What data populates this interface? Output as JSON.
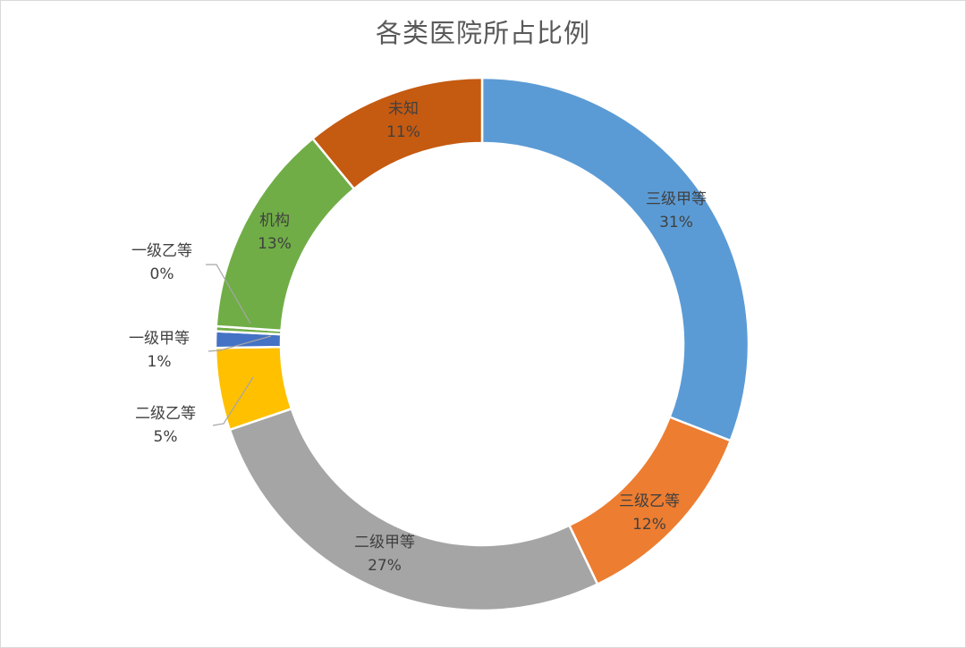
{
  "chart_data": {
    "type": "pie",
    "variant": "donut",
    "title": "各类医院所占比例",
    "start_angle_deg": 0,
    "direction": "clockwise",
    "slices": [
      {
        "name": "三级甲等",
        "value": 31,
        "label": "31%",
        "color": "#5b9bd5"
      },
      {
        "name": "三级乙等",
        "value": 12,
        "label": "12%",
        "color": "#ed7d31"
      },
      {
        "name": "二级甲等",
        "value": 27,
        "label": "27%",
        "color": "#a5a5a5"
      },
      {
        "name": "二级乙等",
        "value": 5,
        "label": "5%",
        "color": "#ffc000"
      },
      {
        "name": "一级甲等",
        "value": 1,
        "label": "1%",
        "color": "#4472c4"
      },
      {
        "name": "一级乙等",
        "value": 0.3,
        "label": "0%",
        "color": "#70ad47"
      },
      {
        "name": "机构",
        "value": 13,
        "label": "13%",
        "color": "#70ad47"
      },
      {
        "name": "未知",
        "value": 11,
        "label": "11%",
        "color": "#c55a11"
      }
    ],
    "legend": "none"
  }
}
